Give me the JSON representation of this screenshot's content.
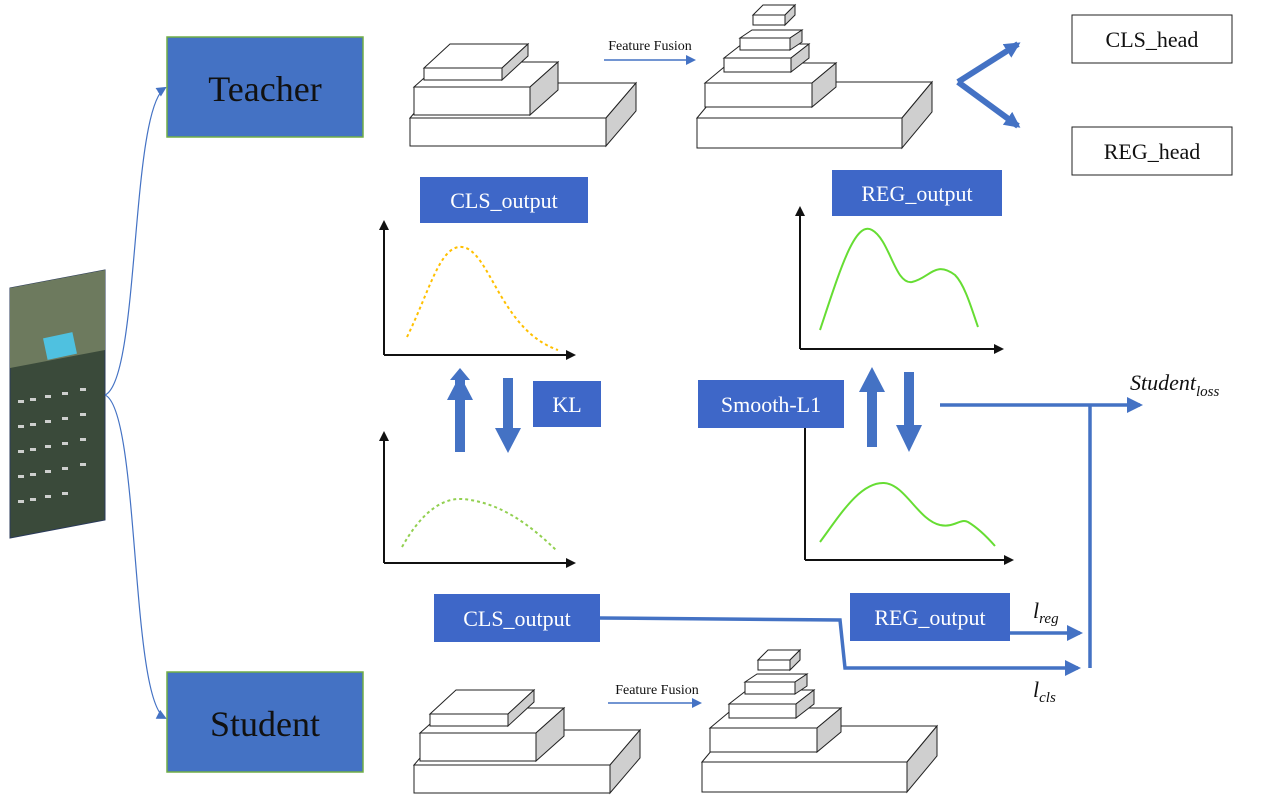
{
  "nodes": {
    "teacher": "Teacher",
    "student": "Student",
    "cls_head": "CLS_head",
    "reg_head": "REG_head",
    "teacher_cls_output": "CLS_output",
    "teacher_reg_output": "REG_output",
    "student_cls_output": "CLS_output",
    "student_reg_output": "REG_output",
    "kl": "KL",
    "smooth_l1": "Smooth-L1"
  },
  "feature_fusion_top": "Feature Fusion",
  "feature_fusion_bottom": "Feature Fusion",
  "loss": {
    "student_loss_main": "Student",
    "student_loss_sub": "loss",
    "l_reg_main": "l",
    "l_reg_sub": "reg",
    "l_cls_main": "l",
    "l_cls_sub": "cls"
  },
  "colors": {
    "box_blue": "#4472C4",
    "label_blue": "#3E67C8",
    "arrow_blue": "#4472C4",
    "green_border": "#70AD47",
    "teacher_curve": "#FFC000",
    "student_cls_curve": "#92D050",
    "reg_curve": "#66DD33"
  }
}
